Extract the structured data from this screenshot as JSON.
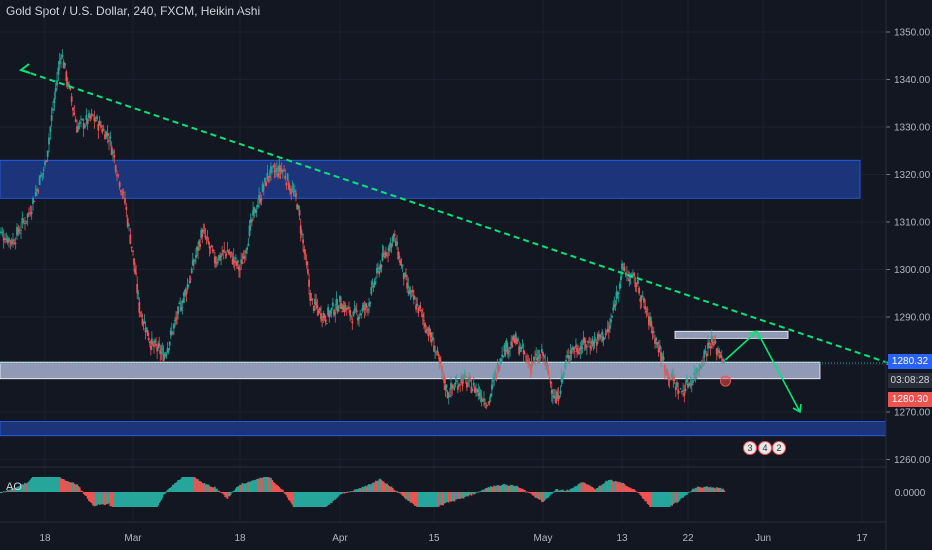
{
  "header": {
    "title": "Gold Spot / U.S. Dollar, 240, FXCM, Heikin Ashi"
  },
  "indicator": {
    "label": "AO",
    "axis_value": "0.0000"
  },
  "price_tags": {
    "upper": "1280.32",
    "countdown": "03:08:28",
    "lower": "1280.30"
  },
  "event_badges": [
    "3",
    "4",
    "2"
  ],
  "colors": {
    "background": "#131722",
    "up": "#26a69a",
    "down": "#ef5350",
    "trendline": "#00e676",
    "zone_blue": "#1e3a8a",
    "zone_grey": "#9fa8c6",
    "ao_up": "#26a69a",
    "ao_down": "#ef5350"
  },
  "chart_data": {
    "type": "candlestick",
    "chart_style": "Heikin Ashi",
    "symbol": "Gold Spot / U.S. Dollar",
    "interval": "240",
    "source": "FXCM",
    "ylim": [
      1255,
      1353
    ],
    "yticks": [
      1260,
      1270,
      1280,
      1290,
      1300,
      1310,
      1320,
      1330,
      1340,
      1350
    ],
    "ytick_labels": [
      "1260.00",
      "1270.00",
      "1280.00",
      "1290.00",
      "1300.00",
      "1310.00",
      "1320.00",
      "1330.00",
      "1340.00",
      "1350.00"
    ],
    "xtick_labels": [
      "18",
      "Mar",
      "18",
      "Apr",
      "15",
      "May",
      "13",
      "22",
      "Jun",
      "17"
    ],
    "price_path": [
      [
        "Feb 12",
        1308
      ],
      [
        "Feb 14",
        1306
      ],
      [
        "Feb 16",
        1312
      ],
      [
        "Feb 18",
        1322
      ],
      [
        "Feb 20",
        1346
      ],
      [
        "Feb 22",
        1330
      ],
      [
        "Feb 24",
        1332
      ],
      [
        "Feb 26",
        1328
      ],
      [
        "Feb 28",
        1314
      ],
      [
        "Mar 2",
        1292
      ],
      [
        "Mar 4",
        1284
      ],
      [
        "Mar 6",
        1282
      ],
      [
        "Mar 8",
        1290
      ],
      [
        "Mar 10",
        1298
      ],
      [
        "Mar 12",
        1308
      ],
      [
        "Mar 14",
        1302
      ],
      [
        "Mar 16",
        1304
      ],
      [
        "Mar 18",
        1300
      ],
      [
        "Mar 20",
        1312
      ],
      [
        "Mar 22",
        1320
      ],
      [
        "Mar 24",
        1321
      ],
      [
        "Mar 26",
        1314
      ],
      [
        "Mar 28",
        1293
      ],
      [
        "Mar 30",
        1290
      ],
      [
        "Apr 1",
        1293
      ],
      [
        "Apr 3",
        1290
      ],
      [
        "Apr 5",
        1292
      ],
      [
        "Apr 7",
        1301
      ],
      [
        "Apr 9",
        1307
      ],
      [
        "Apr 11",
        1296
      ],
      [
        "Apr 13",
        1291
      ],
      [
        "Apr 15",
        1284
      ],
      [
        "Apr 17",
        1274
      ],
      [
        "Apr 19",
        1277
      ],
      [
        "Apr 21",
        1275
      ],
      [
        "Apr 23",
        1272
      ],
      [
        "Apr 25",
        1283
      ],
      [
        "Apr 27",
        1285
      ],
      [
        "Apr 29",
        1280
      ],
      [
        "May 1",
        1282
      ],
      [
        "May 3",
        1272
      ],
      [
        "May 5",
        1283
      ],
      [
        "May 7",
        1284
      ],
      [
        "May 9",
        1285
      ],
      [
        "May 11",
        1287
      ],
      [
        "May 13",
        1300
      ],
      [
        "May 15",
        1297
      ],
      [
        "May 17",
        1288
      ],
      [
        "May 19",
        1279
      ],
      [
        "May 21",
        1274
      ],
      [
        "May 23",
        1278
      ],
      [
        "May 25",
        1285
      ],
      [
        "May 27",
        1281
      ]
    ],
    "trendlines": [
      {
        "from": [
          "Feb 15",
          1342
        ],
        "to": [
          "Jun 22",
          1280
        ],
        "style": "dashed"
      }
    ],
    "zones": [
      {
        "name": "resistance zone",
        "low": 1315,
        "high": 1323
      },
      {
        "name": "support zone",
        "low": 1277,
        "high": 1280.5
      },
      {
        "name": "lower zone",
        "low": 1265,
        "high": 1268
      },
      {
        "name": "small zone",
        "low": 1285.5,
        "high": 1287
      }
    ],
    "projection": [
      [
        "May 27",
        1281
      ],
      [
        "May 29",
        1287
      ],
      [
        "Jun 5",
        1270
      ]
    ],
    "ao_range": [
      -5,
      5
    ]
  }
}
